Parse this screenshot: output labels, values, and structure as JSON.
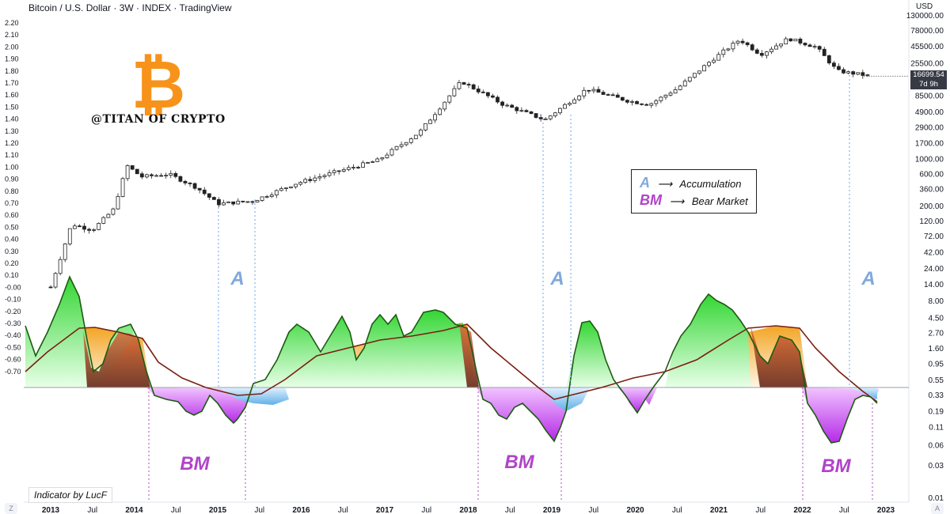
{
  "header": {
    "title": "Bitcoin / U.S. Dollar · 3W · INDEX · TradingView"
  },
  "branding": {
    "logo_text": "@TITAN OF CRYPTO",
    "logo_glyph": "₿",
    "logo_color": "#f7931a",
    "credit": "Indicator by LucF"
  },
  "legend": {
    "rows": [
      {
        "key": "A",
        "arrow": "⟶",
        "label": "Accumulation",
        "color": "#7fa9dd"
      },
      {
        "key": "BM",
        "arrow": "⟶",
        "label": "Bear Market",
        "color": "#b044c8"
      }
    ]
  },
  "annotations": {
    "accumulation_label": "A",
    "bear_market_label": "BM"
  },
  "price": {
    "currency": "USD",
    "last": "16699.54",
    "countdown": "7d 9h"
  },
  "corner_icons": {
    "left": "Z",
    "right": "A"
  },
  "chart_data": [
    {
      "type": "candlestick",
      "name": "price",
      "scale": "log",
      "right_axis_ticks": [
        "130000.00",
        "78000.00",
        "45500.00",
        "25500.00",
        "8500.00",
        "4900.00",
        "2900.00",
        "1700.00",
        "1000.00",
        "600.00",
        "360.00",
        "200.00",
        "120.00",
        "72.00",
        "42.00",
        "24.00",
        "14.00",
        "8.00",
        "4.50",
        "2.70",
        "1.60",
        "0.95",
        "0.55",
        "0.33",
        "0.19",
        "0.11",
        "0.06",
        "0.03",
        "0.01"
      ],
      "left_axis_ticks": [
        "2.20",
        "2.10",
        "2.00",
        "1.90",
        "1.80",
        "1.70",
        "1.60",
        "1.50",
        "1.40",
        "1.30",
        "1.20",
        "1.10",
        "1.00",
        "0.90",
        "0.80",
        "0.70",
        "0.60",
        "0.50",
        "0.40",
        "0.30",
        "0.20",
        "0.10",
        "-0.00",
        "-0.10",
        "-0.20",
        "-0.30",
        "-0.40",
        "-0.50",
        "-0.60",
        "-0.70"
      ],
      "x_ticks": [
        "2013",
        "Jul",
        "2014",
        "Jul",
        "2015",
        "Jul",
        "2016",
        "Jul",
        "2017",
        "Jul",
        "2018",
        "Jul",
        "2019",
        "Jul",
        "2020",
        "Jul",
        "2021",
        "Jul",
        "2022",
        "Jul",
        "2023"
      ],
      "close_approx": [
        [
          "2013-01",
          13
        ],
        [
          "2013-04",
          110
        ],
        [
          "2013-07",
          90
        ],
        [
          "2013-10",
          180
        ],
        [
          "2013-12",
          800
        ],
        [
          "2014-02",
          550
        ],
        [
          "2014-06",
          600
        ],
        [
          "2014-10",
          380
        ],
        [
          "2015-01",
          220
        ],
        [
          "2015-06",
          240
        ],
        [
          "2015-12",
          430
        ],
        [
          "2016-06",
          650
        ],
        [
          "2016-12",
          960
        ],
        [
          "2017-06",
          2500
        ],
        [
          "2017-12",
          14000
        ],
        [
          "2018-06",
          6400
        ],
        [
          "2018-12",
          3800
        ],
        [
          "2019-06",
          10800
        ],
        [
          "2019-12",
          7200
        ],
        [
          "2020-03",
          6400
        ],
        [
          "2020-07",
          11000
        ],
        [
          "2020-12",
          29000
        ],
        [
          "2021-04",
          58000
        ],
        [
          "2021-07",
          35000
        ],
        [
          "2021-11",
          60000
        ],
        [
          "2022-03",
          45000
        ],
        [
          "2022-06",
          20000
        ],
        [
          "2022-11",
          16699
        ]
      ]
    },
    {
      "type": "area",
      "name": "oscillator",
      "fast_line": [
        [
          "2013-01",
          0.35
        ],
        [
          "2013-03",
          0.15
        ],
        [
          "2013-06",
          0.5
        ],
        [
          "2013-09",
          0.55
        ],
        [
          "2013-12",
          0.13
        ],
        [
          "2014-02",
          0.22
        ],
        [
          "2014-05",
          0.1
        ],
        [
          "2014-08",
          -0.08
        ],
        [
          "2014-11",
          -0.17
        ],
        [
          "2015-01",
          -0.12
        ],
        [
          "2015-04",
          -0.17
        ],
        [
          "2015-06",
          -0.2
        ],
        [
          "2015-09",
          -0.08
        ],
        [
          "2015-12",
          0.18
        ],
        [
          "2016-04",
          0.38
        ],
        [
          "2016-06",
          0.3
        ],
        [
          "2016-09",
          0.32
        ],
        [
          "2016-12",
          0.18
        ],
        [
          "2017-03",
          0.3
        ],
        [
          "2017-06",
          0.42
        ],
        [
          "2017-09",
          0.3
        ],
        [
          "2017-12",
          0.43
        ],
        [
          "2018-02",
          0.1
        ],
        [
          "2018-05",
          -0.12
        ],
        [
          "2018-08",
          -0.16
        ],
        [
          "2018-11",
          -0.23
        ],
        [
          "2019-01",
          -0.28
        ],
        [
          "2019-03",
          -0.05
        ],
        [
          "2019-06",
          0.38
        ],
        [
          "2019-09",
          0.2
        ],
        [
          "2019-12",
          -0.05
        ],
        [
          "2020-03",
          -0.12
        ],
        [
          "2020-06",
          0.05
        ],
        [
          "2020-09",
          0.1
        ],
        [
          "2020-12",
          0.3
        ],
        [
          "2021-03",
          0.46
        ],
        [
          "2021-05",
          0.3
        ],
        [
          "2021-07",
          0.1
        ],
        [
          "2021-10",
          0.25
        ],
        [
          "2021-12",
          0.05
        ],
        [
          "2022-02",
          -0.18
        ],
        [
          "2022-06",
          -0.32
        ],
        [
          "2022-08",
          -0.12
        ],
        [
          "2022-11",
          -0.08
        ]
      ],
      "slow_line": [
        [
          "2013-01",
          0.02
        ],
        [
          "2013-06",
          0.25
        ],
        [
          "2013-09",
          0.34
        ],
        [
          "2014-01",
          0.28
        ],
        [
          "2014-06",
          0.08
        ],
        [
          "2014-11",
          -0.05
        ],
        [
          "2015-06",
          -0.13
        ],
        [
          "2015-12",
          -0.12
        ],
        [
          "2016-06",
          0.12
        ],
        [
          "2016-12",
          0.2
        ],
        [
          "2017-06",
          0.28
        ],
        [
          "2017-12",
          0.35
        ],
        [
          "2018-06",
          0.15
        ],
        [
          "2018-12",
          -0.08
        ],
        [
          "2019-03",
          -0.18
        ],
        [
          "2019-09",
          -0.1
        ],
        [
          "2020-03",
          -0.01
        ],
        [
          "2020-09",
          0.02
        ],
        [
          "2021-03",
          0.18
        ],
        [
          "2021-06",
          0.32
        ],
        [
          "2021-12",
          0.28
        ],
        [
          "2022-06",
          0.05
        ],
        [
          "2022-11",
          -0.12
        ]
      ],
      "zero_line": 0
    }
  ]
}
